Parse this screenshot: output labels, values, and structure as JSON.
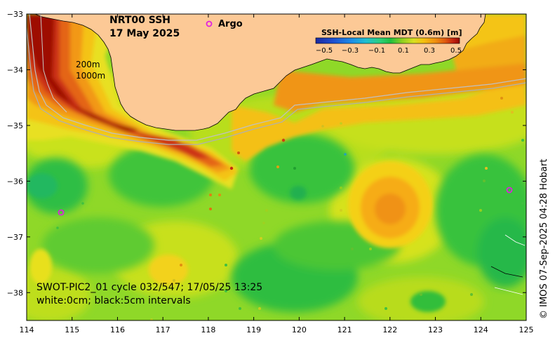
{
  "title": {
    "line1": "NRT00 SSH",
    "line2": "17 May 2025"
  },
  "legend": {
    "argo_symbol": "o",
    "argo_label": "Argo",
    "argo_color": "#e020e0"
  },
  "colorbar": {
    "title": "SSH-Local Mean MDT (0.6m) [m]",
    "ticks": [
      "−0.5",
      "−0.3",
      "−0.1",
      "0.1",
      "0.3",
      "0.5"
    ],
    "colors": [
      "#1c2aa0",
      "#1f4fd0",
      "#1c8ee8",
      "#20c0d0",
      "#2bd07a",
      "#20c040",
      "#8ed020",
      "#d8e020",
      "#f5c010",
      "#f09010",
      "#e05a10",
      "#c02010",
      "#960a00"
    ]
  },
  "isobaths": {
    "label_200m": "200m",
    "label_1000m": "1000m"
  },
  "info": {
    "line1": "SWOT-PIC2_01 cycle 032/547; 17/05/25 13:25",
    "line2": "white:0cm; black:5cm intervals"
  },
  "credit": "© IMOS 07-Sep-2025 04:28 Hobart",
  "axes": {
    "x_ticks": [
      "114",
      "115",
      "116",
      "117",
      "118",
      "119",
      "120",
      "121",
      "122",
      "123",
      "124",
      "125"
    ],
    "y_ticks": [
      "−33",
      "−34",
      "−35",
      "−36",
      "−37",
      "−38"
    ],
    "lon_range": [
      114,
      125
    ],
    "lat_range": [
      -38.5,
      -33
    ]
  },
  "colors": {
    "land": "#fcc996",
    "background_field": "#7fd63a"
  }
}
